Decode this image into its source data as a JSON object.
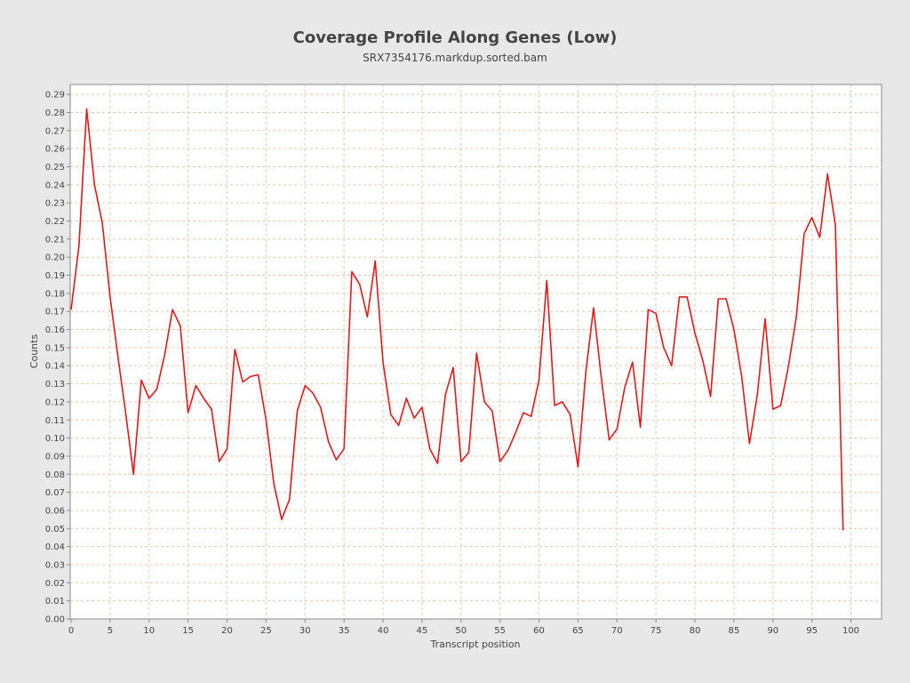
{
  "chart_data": {
    "type": "line",
    "title": "Coverage Profile Along Genes (Low)",
    "subtitle": "SRX7354176.markdup.sorted.bam",
    "xlabel": "Transcript position",
    "ylabel": "Counts",
    "xlim": [
      0,
      104
    ],
    "ylim": [
      0,
      0.295
    ],
    "x_ticks": [
      "0",
      "5",
      "10",
      "15",
      "20",
      "25",
      "30",
      "35",
      "40",
      "45",
      "50",
      "55",
      "60",
      "65",
      "70",
      "75",
      "80",
      "85",
      "90",
      "95",
      "100"
    ],
    "y_ticks": [
      "0.00",
      "0.01",
      "0.02",
      "0.03",
      "0.04",
      "0.05",
      "0.06",
      "0.07",
      "0.08",
      "0.09",
      "0.10",
      "0.11",
      "0.12",
      "0.13",
      "0.14",
      "0.15",
      "0.16",
      "0.17",
      "0.18",
      "0.19",
      "0.20",
      "0.21",
      "0.22",
      "0.23",
      "0.24",
      "0.25",
      "0.26",
      "0.27",
      "0.28",
      "0.29"
    ],
    "grid": true,
    "colors": {
      "background": "#e8e8e8",
      "plot": "#ffffff",
      "grid": "#f0c8a8",
      "line": "#e31a1c",
      "text": "#444444"
    },
    "series": [
      {
        "color": "#e31a1c",
        "x": [
          0,
          1,
          2,
          3,
          4,
          5,
          6,
          7,
          8,
          9,
          10,
          11,
          12,
          13,
          14,
          15,
          16,
          17,
          18,
          19,
          20,
          21,
          22,
          23,
          24,
          25,
          26,
          27,
          28,
          29,
          30,
          31,
          32,
          33,
          34,
          35,
          36,
          37,
          38,
          39,
          40,
          41,
          42,
          43,
          44,
          45,
          46,
          47,
          48,
          49,
          50,
          51,
          52,
          53,
          54,
          55,
          56,
          57,
          58,
          59,
          60,
          61,
          62,
          63,
          64,
          65,
          66,
          67,
          68,
          69,
          70,
          71,
          72,
          73,
          74,
          75,
          76,
          77,
          78,
          79,
          80,
          81,
          82,
          83,
          84,
          85,
          86,
          87,
          88,
          89,
          90,
          91,
          92,
          93,
          94,
          95,
          96,
          97,
          98,
          99
        ],
        "values": [
          0.171,
          0.206,
          0.282,
          0.24,
          0.219,
          0.178,
          0.145,
          0.114,
          0.08,
          0.132,
          0.122,
          0.127,
          0.146,
          0.171,
          0.162,
          0.114,
          0.129,
          0.122,
          0.116,
          0.087,
          0.094,
          0.149,
          0.131,
          0.134,
          0.135,
          0.11,
          0.075,
          0.055,
          0.066,
          0.115,
          0.129,
          0.125,
          0.117,
          0.098,
          0.088,
          0.094,
          0.192,
          0.185,
          0.167,
          0.198,
          0.142,
          0.113,
          0.107,
          0.122,
          0.111,
          0.117,
          0.094,
          0.086,
          0.124,
          0.139,
          0.087,
          0.092,
          0.147,
          0.12,
          0.115,
          0.087,
          0.093,
          0.103,
          0.114,
          0.112,
          0.132,
          0.187,
          0.118,
          0.12,
          0.113,
          0.084,
          0.136,
          0.172,
          0.133,
          0.099,
          0.105,
          0.128,
          0.142,
          0.106,
          0.171,
          0.169,
          0.15,
          0.14,
          0.178,
          0.178,
          0.158,
          0.143,
          0.123,
          0.177,
          0.177,
          0.16,
          0.134,
          0.097,
          0.124,
          0.166,
          0.116,
          0.118,
          0.14,
          0.167,
          0.213,
          0.222,
          0.211,
          0.246,
          0.218,
          0.049
        ]
      }
    ]
  }
}
